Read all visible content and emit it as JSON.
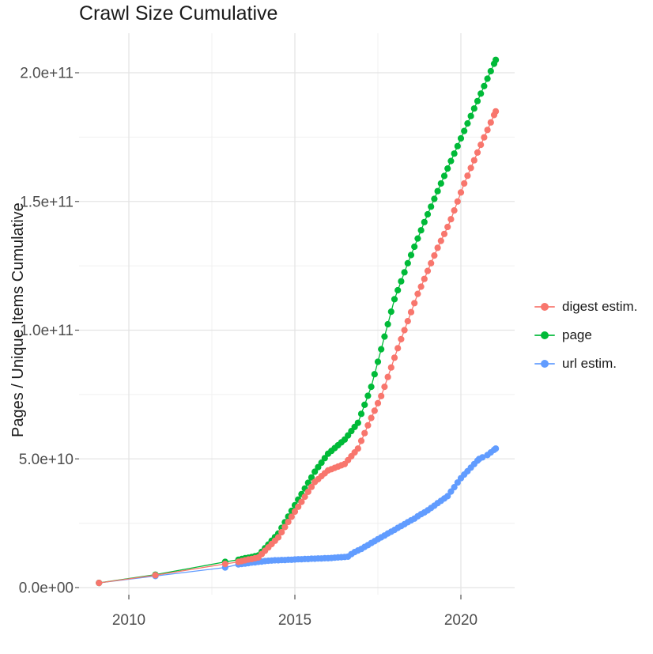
{
  "chart_data": {
    "type": "line",
    "title": "Crawl Size Cumulative",
    "xlabel": "",
    "ylabel": "Pages / Unique Items Cumulative",
    "value_unit": "pages (billions, 1e9)",
    "xlim": [
      2008.5,
      2021.65
    ],
    "ylim": [
      0,
      215000000000.0
    ],
    "grid": "on",
    "legend_position": "right",
    "x_ticks": [
      {
        "v": 2010,
        "label": "2010"
      },
      {
        "v": 2015,
        "label": "2015"
      },
      {
        "v": 2020,
        "label": "2020"
      }
    ],
    "x_minor": [
      2012.5,
      2017.5
    ],
    "y_ticks": [
      {
        "v": 0,
        "label": "0.0e+00"
      },
      {
        "v": 50,
        "label": "5.0e+10"
      },
      {
        "v": 100,
        "label": "1.0e+11"
      },
      {
        "v": 150,
        "label": "1.5e+11"
      },
      {
        "v": 200,
        "label": "2.0e+11"
      }
    ],
    "y_minor": [
      25,
      75,
      125,
      175
    ],
    "series": [
      {
        "name": "digest estim.",
        "color": "#F8766D",
        "points": [
          [
            2009.1,
            1.8
          ],
          [
            2010.8,
            4.8
          ],
          [
            2012.9,
            9.2
          ],
          [
            2013.3,
            10.0
          ],
          [
            2013.4,
            10.3
          ],
          [
            2013.5,
            10.6
          ],
          [
            2013.6,
            10.9
          ],
          [
            2013.7,
            11.1
          ],
          [
            2013.8,
            11.4
          ],
          [
            2013.9,
            11.7
          ],
          [
            2014.0,
            13.0
          ],
          [
            2014.1,
            14.3
          ],
          [
            2014.2,
            15.6
          ],
          [
            2014.3,
            16.9
          ],
          [
            2014.4,
            18.2
          ],
          [
            2014.5,
            19.5
          ],
          [
            2014.6,
            21.5
          ],
          [
            2014.7,
            23.5
          ],
          [
            2014.8,
            25.5
          ],
          [
            2014.9,
            27.5
          ],
          [
            2015.0,
            29.5
          ],
          [
            2015.1,
            31.4
          ],
          [
            2015.2,
            33.3
          ],
          [
            2015.3,
            35.3
          ],
          [
            2015.4,
            37.2
          ],
          [
            2015.5,
            39.1
          ],
          [
            2015.6,
            41.0
          ],
          [
            2015.7,
            42.1
          ],
          [
            2015.8,
            43.3
          ],
          [
            2015.9,
            44.4
          ],
          [
            2016.0,
            45.5
          ],
          [
            2016.1,
            46.0
          ],
          [
            2016.2,
            46.5
          ],
          [
            2016.3,
            47.0
          ],
          [
            2016.4,
            47.5
          ],
          [
            2016.5,
            48.0
          ],
          [
            2016.6,
            49.5
          ],
          [
            2016.7,
            51.0
          ],
          [
            2016.8,
            52.5
          ],
          [
            2016.9,
            54.0
          ],
          [
            2017.0,
            57.0
          ],
          [
            2017.1,
            60.0
          ],
          [
            2017.2,
            63.0
          ],
          [
            2017.3,
            65.9
          ],
          [
            2017.4,
            68.7
          ],
          [
            2017.5,
            71.6
          ],
          [
            2017.6,
            74.4
          ],
          [
            2017.7,
            78.0
          ],
          [
            2017.8,
            81.8
          ],
          [
            2017.9,
            85.5
          ],
          [
            2018.0,
            89.3
          ],
          [
            2018.1,
            93.0
          ],
          [
            2018.2,
            96.5
          ],
          [
            2018.3,
            100.0
          ],
          [
            2018.4,
            103.5
          ],
          [
            2018.5,
            107.0
          ],
          [
            2018.6,
            110.5
          ],
          [
            2018.7,
            114.1
          ],
          [
            2018.8,
            116.9
          ],
          [
            2018.9,
            119.9
          ],
          [
            2019.0,
            123.0
          ],
          [
            2019.1,
            126.0
          ],
          [
            2019.2,
            129.0
          ],
          [
            2019.3,
            132.0
          ],
          [
            2019.4,
            134.7
          ],
          [
            2019.5,
            137.4
          ],
          [
            2019.6,
            140.1
          ],
          [
            2019.7,
            143.1
          ],
          [
            2019.8,
            146.5
          ],
          [
            2019.9,
            150.0
          ],
          [
            2020.0,
            153.5
          ],
          [
            2020.1,
            157.0
          ],
          [
            2020.2,
            160.0
          ],
          [
            2020.3,
            163.0
          ],
          [
            2020.4,
            166.0
          ],
          [
            2020.5,
            169.0
          ],
          [
            2020.6,
            172.0
          ],
          [
            2020.7,
            174.9
          ],
          [
            2020.8,
            177.8
          ],
          [
            2020.9,
            180.7
          ],
          [
            2021.0,
            183.6
          ],
          [
            2021.05,
            185.0
          ]
        ]
      },
      {
        "name": "page",
        "color": "#00BA38",
        "points": [
          [
            2009.1,
            1.8
          ],
          [
            2010.8,
            5.0
          ],
          [
            2012.9,
            10.0
          ],
          [
            2013.3,
            10.8
          ],
          [
            2013.4,
            11.1
          ],
          [
            2013.5,
            11.4
          ],
          [
            2013.6,
            11.6
          ],
          [
            2013.7,
            11.9
          ],
          [
            2013.8,
            12.2
          ],
          [
            2013.9,
            12.5
          ],
          [
            2014.0,
            13.9
          ],
          [
            2014.1,
            15.3
          ],
          [
            2014.2,
            16.7
          ],
          [
            2014.3,
            18.2
          ],
          [
            2014.4,
            19.6
          ],
          [
            2014.5,
            21.0
          ],
          [
            2014.6,
            23.2
          ],
          [
            2014.7,
            25.4
          ],
          [
            2014.8,
            27.6
          ],
          [
            2014.9,
            29.8
          ],
          [
            2015.0,
            32.0
          ],
          [
            2015.1,
            34.2
          ],
          [
            2015.2,
            36.3
          ],
          [
            2015.3,
            38.5
          ],
          [
            2015.4,
            40.7
          ],
          [
            2015.5,
            42.8
          ],
          [
            2015.6,
            45.0
          ],
          [
            2015.7,
            46.8
          ],
          [
            2015.8,
            48.5
          ],
          [
            2015.9,
            50.3
          ],
          [
            2016.0,
            52.0
          ],
          [
            2016.1,
            53.1
          ],
          [
            2016.2,
            54.2
          ],
          [
            2016.3,
            55.3
          ],
          [
            2016.4,
            56.4
          ],
          [
            2016.5,
            57.5
          ],
          [
            2016.6,
            59.1
          ],
          [
            2016.7,
            60.8
          ],
          [
            2016.8,
            62.4
          ],
          [
            2016.9,
            64.0
          ],
          [
            2017.0,
            67.5
          ],
          [
            2017.1,
            71.0
          ],
          [
            2017.2,
            74.5
          ],
          [
            2017.3,
            78.0
          ],
          [
            2017.4,
            82.9
          ],
          [
            2017.5,
            87.7
          ],
          [
            2017.6,
            92.6
          ],
          [
            2017.7,
            97.5
          ],
          [
            2017.8,
            102.3
          ],
          [
            2017.9,
            107.2
          ],
          [
            2018.0,
            112.0
          ],
          [
            2018.1,
            115.5
          ],
          [
            2018.2,
            119.0
          ],
          [
            2018.3,
            122.5
          ],
          [
            2018.4,
            126.0
          ],
          [
            2018.5,
            129.2
          ],
          [
            2018.6,
            132.4
          ],
          [
            2018.7,
            135.6
          ],
          [
            2018.8,
            138.8
          ],
          [
            2018.9,
            142.0
          ],
          [
            2019.0,
            145.0
          ],
          [
            2019.1,
            148.0
          ],
          [
            2019.2,
            151.0
          ],
          [
            2019.3,
            154.0
          ],
          [
            2019.4,
            157.0
          ],
          [
            2019.5,
            159.9
          ],
          [
            2019.6,
            162.8
          ],
          [
            2019.7,
            165.7
          ],
          [
            2019.8,
            168.6
          ],
          [
            2019.9,
            171.5
          ],
          [
            2020.0,
            174.5
          ],
          [
            2020.1,
            177.4
          ],
          [
            2020.2,
            180.3
          ],
          [
            2020.3,
            183.2
          ],
          [
            2020.4,
            186.1
          ],
          [
            2020.5,
            189.0
          ],
          [
            2020.6,
            191.9
          ],
          [
            2020.7,
            194.8
          ],
          [
            2020.8,
            197.7
          ],
          [
            2020.9,
            200.6
          ],
          [
            2021.0,
            203.5
          ],
          [
            2021.05,
            205.0
          ]
        ]
      },
      {
        "name": "url estim.",
        "color": "#619CFF",
        "points": [
          [
            2009.1,
            1.8
          ],
          [
            2010.8,
            4.5
          ],
          [
            2012.9,
            7.8
          ],
          [
            2013.3,
            9.0
          ],
          [
            2013.4,
            9.2
          ],
          [
            2013.5,
            9.3
          ],
          [
            2013.6,
            9.5
          ],
          [
            2013.7,
            9.7
          ],
          [
            2013.8,
            9.8
          ],
          [
            2013.9,
            10.0
          ],
          [
            2014.0,
            10.1
          ],
          [
            2014.1,
            10.3
          ],
          [
            2014.2,
            10.4
          ],
          [
            2014.3,
            10.5
          ],
          [
            2014.4,
            10.6
          ],
          [
            2014.5,
            10.6
          ],
          [
            2014.6,
            10.7
          ],
          [
            2014.7,
            10.7
          ],
          [
            2014.8,
            10.8
          ],
          [
            2014.9,
            10.8
          ],
          [
            2015.0,
            10.9
          ],
          [
            2015.1,
            11.0
          ],
          [
            2015.2,
            11.0
          ],
          [
            2015.3,
            11.1
          ],
          [
            2015.4,
            11.1
          ],
          [
            2015.5,
            11.2
          ],
          [
            2015.6,
            11.2
          ],
          [
            2015.7,
            11.3
          ],
          [
            2015.8,
            11.3
          ],
          [
            2015.9,
            11.4
          ],
          [
            2016.0,
            11.4
          ],
          [
            2016.1,
            11.5
          ],
          [
            2016.2,
            11.6
          ],
          [
            2016.3,
            11.7
          ],
          [
            2016.4,
            11.8
          ],
          [
            2016.5,
            11.9
          ],
          [
            2016.6,
            12.0
          ],
          [
            2016.7,
            13.0
          ],
          [
            2016.8,
            13.8
          ],
          [
            2016.9,
            14.4
          ],
          [
            2017.0,
            15.0
          ],
          [
            2017.1,
            15.8
          ],
          [
            2017.2,
            16.5
          ],
          [
            2017.3,
            17.3
          ],
          [
            2017.4,
            18.0
          ],
          [
            2017.5,
            18.8
          ],
          [
            2017.6,
            19.5
          ],
          [
            2017.7,
            20.2
          ],
          [
            2017.8,
            21.0
          ],
          [
            2017.9,
            21.7
          ],
          [
            2018.0,
            22.4
          ],
          [
            2018.1,
            23.2
          ],
          [
            2018.2,
            23.9
          ],
          [
            2018.3,
            24.6
          ],
          [
            2018.4,
            25.4
          ],
          [
            2018.5,
            26.1
          ],
          [
            2018.6,
            26.8
          ],
          [
            2018.7,
            27.7
          ],
          [
            2018.8,
            28.5
          ],
          [
            2018.9,
            29.2
          ],
          [
            2019.0,
            30.0
          ],
          [
            2019.1,
            30.9
          ],
          [
            2019.2,
            31.8
          ],
          [
            2019.3,
            32.8
          ],
          [
            2019.4,
            33.7
          ],
          [
            2019.5,
            34.6
          ],
          [
            2019.6,
            35.5
          ],
          [
            2019.7,
            37.3
          ],
          [
            2019.8,
            39.0
          ],
          [
            2019.9,
            40.8
          ],
          [
            2020.0,
            42.5
          ],
          [
            2020.1,
            43.9
          ],
          [
            2020.2,
            45.2
          ],
          [
            2020.3,
            46.6
          ],
          [
            2020.4,
            48.0
          ],
          [
            2020.5,
            49.3
          ],
          [
            2020.55,
            50.0
          ],
          [
            2020.65,
            50.6
          ],
          [
            2020.8,
            51.5
          ],
          [
            2020.9,
            52.5
          ],
          [
            2021.0,
            53.5
          ],
          [
            2021.05,
            54.0
          ]
        ]
      }
    ]
  },
  "colors": {
    "grid_major": "#e4e4e4",
    "grid_minor": "#f0f0f0",
    "tick_mark": "#555555",
    "tick_text": "#4d4d4d"
  }
}
